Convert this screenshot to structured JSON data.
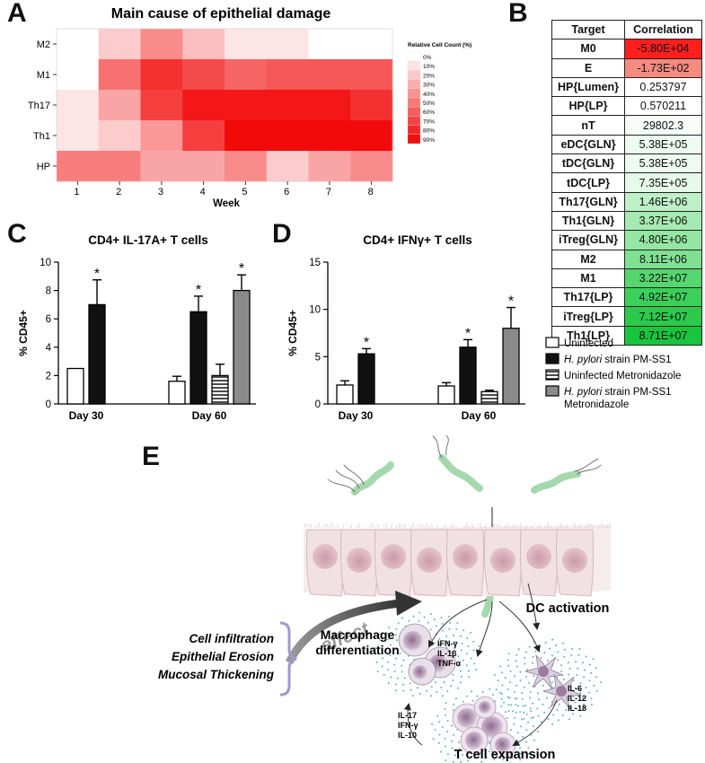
{
  "panels": {
    "a": {
      "letter": "A"
    },
    "b": {
      "letter": "B"
    },
    "c": {
      "letter": "C"
    },
    "d": {
      "letter": "D"
    },
    "e": {
      "letter": "E"
    }
  },
  "heatmap": {
    "title": "Main cause of epithelial damage",
    "xlabel": "Week",
    "rows": [
      "M2",
      "M1",
      "Th17",
      "Th1",
      "HP"
    ],
    "cols": [
      "1",
      "2",
      "3",
      "4",
      "5",
      "6",
      "7",
      "8"
    ],
    "legend_title": "Relative Cell Count (%)",
    "legend_labels": [
      "0%",
      "10%",
      "20%",
      "30%",
      "40%",
      "50%",
      "60%",
      "70%",
      "80%",
      "90%"
    ],
    "legend_colors": [
      "#ffffff",
      "#fde4e4",
      "#fcc9c9",
      "#fbaeae",
      "#f99393",
      "#f87878",
      "#f65d5d",
      "#f54242",
      "#f32727",
      "#f20c0c"
    ]
  },
  "chart_data": [
    {
      "type": "heatmap",
      "title": "Main cause of epithelial damage",
      "xlabel": "Week",
      "ylabel": "",
      "rows": [
        "M2",
        "M1",
        "Th17",
        "Th1",
        "HP"
      ],
      "cols": [
        "1",
        "2",
        "3",
        "4",
        "5",
        "6",
        "7",
        "8"
      ],
      "values": [
        [
          0,
          20,
          45,
          25,
          10,
          10,
          0,
          0
        ],
        [
          0,
          55,
          80,
          70,
          60,
          65,
          65,
          65
        ],
        [
          10,
          35,
          75,
          90,
          90,
          90,
          90,
          80
        ],
        [
          10,
          20,
          40,
          75,
          95,
          95,
          95,
          95
        ],
        [
          50,
          50,
          35,
          35,
          45,
          20,
          35,
          45
        ]
      ],
      "value_unit": "Relative Cell Count (%)"
    },
    {
      "type": "table",
      "columns": [
        "Target",
        "Correlation"
      ],
      "rows": [
        {
          "target": "M0",
          "value": "-5.80E+04",
          "color": "#ff1f1f"
        },
        {
          "target": "E",
          "value": "-1.73E+02",
          "color": "#f58a7f"
        },
        {
          "target": "HP{Lumen}",
          "value": "0.253797",
          "color": "#ffffff"
        },
        {
          "target": "HP{LP}",
          "value": "0.570211",
          "color": "#ffffff"
        },
        {
          "target": "nT",
          "value": "29802.3",
          "color": "#f6fdf7"
        },
        {
          "target": "eDC{GLN}",
          "value": "5.38E+05",
          "color": "#eefbf0"
        },
        {
          "target": "tDC{GLN}",
          "value": "5.38E+05",
          "color": "#eefbf0"
        },
        {
          "target": "tDC{LP}",
          "value": "7.35E+05",
          "color": "#e6f9ea"
        },
        {
          "target": "Th17{GLN}",
          "value": "1.46E+06",
          "color": "#bdf0c7"
        },
        {
          "target": "Th1{GLN}",
          "value": "3.37E+06",
          "color": "#a5eab2"
        },
        {
          "target": "iTreg{GLN}",
          "value": "4.80E+06",
          "color": "#94e6a3"
        },
        {
          "target": "M2",
          "value": "8.11E+06",
          "color": "#7fe092"
        },
        {
          "target": "M1",
          "value": "3.22E+07",
          "color": "#55d66f"
        },
        {
          "target": "Th17{LP}",
          "value": "4.92E+07",
          "color": "#3ccf5a"
        },
        {
          "target": "iTreg{LP}",
          "value": "7.12E+07",
          "color": "#2bc94c"
        },
        {
          "target": "Th1{LP}",
          "value": "8.71E+07",
          "color": "#19c43e"
        }
      ]
    },
    {
      "type": "bar",
      "title": "CD4+ IL-17A+ T cells",
      "ylabel": "% CD45+",
      "ylim": [
        0,
        10
      ],
      "yticks": [
        "0",
        "2",
        "4",
        "6",
        "8",
        "10"
      ],
      "categories": [
        "Day 30",
        "Day 60"
      ],
      "series": [
        {
          "name": "Uninfected",
          "values": [
            2.5,
            1.6
          ],
          "errors": [
            0,
            0.35
          ],
          "sig": [
            false,
            false
          ]
        },
        {
          "name": "H. pylori strain PM-SS1",
          "values": [
            7.0,
            6.5
          ],
          "errors": [
            1.75,
            1.1
          ],
          "sig": [
            true,
            true
          ]
        },
        {
          "name": "Uninfected Metronidazole",
          "values": [
            null,
            2.0
          ],
          "errors": [
            null,
            0.8
          ],
          "sig": [
            false,
            false
          ]
        },
        {
          "name": "H. pylori strain PM-SS1 Metronidazole",
          "values": [
            null,
            8.0
          ],
          "errors": [
            null,
            1.1
          ],
          "sig": [
            false,
            true
          ]
        }
      ]
    },
    {
      "type": "bar",
      "title": "CD4+ IFNγ+ T cells",
      "ylabel": "% CD45+",
      "ylim": [
        0,
        15
      ],
      "yticks": [
        "0",
        "5",
        "10",
        "15"
      ],
      "categories": [
        "Day 30",
        "Day 60"
      ],
      "series": [
        {
          "name": "Uninfected",
          "values": [
            2.0,
            1.9
          ],
          "errors": [
            0.45,
            0.35
          ],
          "sig": [
            false,
            false
          ]
        },
        {
          "name": "H. pylori strain PM-SS1",
          "values": [
            5.3,
            6.0
          ],
          "errors": [
            0.55,
            0.8
          ],
          "sig": [
            true,
            true
          ]
        },
        {
          "name": "Uninfected Metronidazole",
          "values": [
            null,
            1.3
          ],
          "errors": [
            null,
            0.15
          ],
          "sig": [
            false,
            false
          ]
        },
        {
          "name": "H. pylori strain PM-SS1 Metronidazole",
          "values": [
            null,
            8.0
          ],
          "errors": [
            null,
            2.2
          ],
          "sig": [
            false,
            true
          ]
        }
      ]
    }
  ],
  "bar_legend": [
    {
      "italic": "",
      "text": "Uninfected",
      "swatch": "white"
    },
    {
      "italic": "H. pylori",
      "text": " strain PM-SS1",
      "swatch": "black"
    },
    {
      "italic": "",
      "text": "Uninfected Metronidazole",
      "swatch": "striped"
    },
    {
      "italic": "H. pylori",
      "text": " strain PM-SS1",
      "text2": "Metronidazole",
      "swatch": "gray"
    }
  ],
  "sig_mark": "*",
  "schematic": {
    "effect_label": "effect",
    "outcomes": [
      "Cell infiltration",
      "Epithelial Erosion",
      "Mucosal Thickening"
    ],
    "dc_activation": "DC activation",
    "macrophage_label_1": "Macrophage",
    "macrophage_label_2": "differentiation",
    "tcell_expansion": "T cell expansion",
    "macrophage_cytokines": [
      "IFN-γ",
      "IL-1β",
      "TNF-α"
    ],
    "dc_cytokines": [
      "IL-6",
      "IL-12",
      "IL-18"
    ],
    "tcell_cytokines": [
      "IL-17",
      "IFN-γ",
      "IL-10"
    ]
  }
}
